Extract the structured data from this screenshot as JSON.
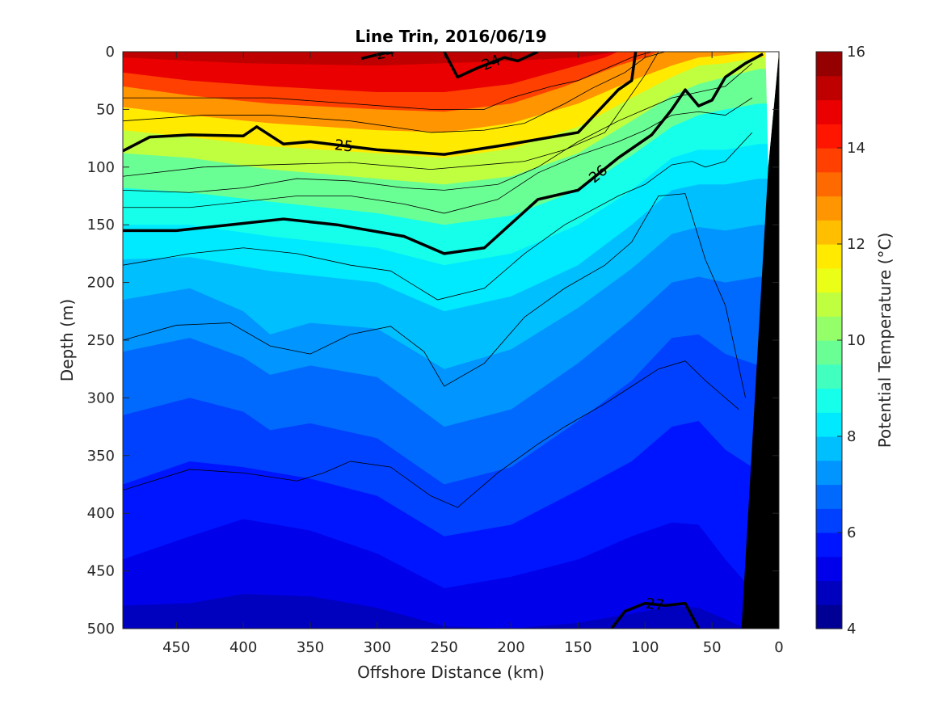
{
  "chart_data": {
    "type": "heatmap",
    "subtype": "filled-contour-section",
    "title": "Line Trin, 2016/06/19",
    "xlabel": "Offshore Distance (km)",
    "ylabel": "Depth (m)",
    "xlim": [
      490,
      0
    ],
    "x_reversed": true,
    "ylim": [
      500,
      0
    ],
    "y_reversed": true,
    "xticks": [
      450,
      400,
      350,
      300,
      250,
      200,
      150,
      100,
      50,
      0
    ],
    "yticks": [
      0,
      50,
      100,
      150,
      200,
      250,
      300,
      350,
      400,
      450,
      500
    ],
    "colorbar": {
      "label": "Potential Temperature (°C)",
      "range": [
        4,
        16
      ],
      "step": 0.5,
      "ticks": [
        4,
        6,
        8,
        10,
        12,
        14,
        16
      ],
      "colormap": "jet"
    },
    "isotherms_depth_m": [
      {
        "temp": 15,
        "x": [
          490,
          400,
          300,
          250,
          200,
          150,
          120
        ],
        "y": [
          5,
          10,
          12,
          10,
          8,
          5,
          0
        ]
      },
      {
        "temp": 14,
        "x": [
          490,
          440,
          380,
          300,
          250,
          200,
          160,
          130,
          120
        ],
        "y": [
          18,
          25,
          30,
          35,
          35,
          28,
          15,
          5,
          0
        ]
      },
      {
        "temp": 13,
        "x": [
          490,
          440,
          380,
          300,
          250,
          200,
          160,
          120,
          100,
          90
        ],
        "y": [
          30,
          38,
          45,
          50,
          52,
          45,
          30,
          12,
          5,
          0
        ]
      },
      {
        "temp": 12,
        "x": [
          490,
          440,
          380,
          300,
          250,
          200,
          150,
          110,
          80,
          60,
          40,
          20
        ],
        "y": [
          48,
          55,
          62,
          68,
          70,
          62,
          45,
          25,
          12,
          5,
          3,
          0
        ]
      },
      {
        "temp": 11,
        "x": [
          490,
          440,
          380,
          300,
          250,
          200,
          150,
          110,
          80,
          60,
          40,
          15
        ],
        "y": [
          68,
          74,
          82,
          88,
          92,
          84,
          65,
          40,
          22,
          12,
          10,
          5
        ]
      },
      {
        "temp": 10,
        "x": [
          490,
          440,
          380,
          300,
          250,
          200,
          150,
          110,
          80,
          60,
          40,
          15
        ],
        "y": [
          88,
          92,
          102,
          110,
          115,
          108,
          88,
          60,
          38,
          28,
          22,
          15
        ]
      },
      {
        "temp": 9,
        "x": [
          490,
          440,
          380,
          300,
          250,
          200,
          150,
          110,
          80,
          60,
          40,
          15
        ],
        "y": [
          118,
          122,
          130,
          140,
          150,
          142,
          120,
          90,
          65,
          55,
          50,
          45
        ]
      },
      {
        "temp": 8.5,
        "x": [
          490,
          440,
          380,
          300,
          250,
          200,
          150,
          110,
          80,
          60,
          40,
          15
        ],
        "y": [
          150,
          150,
          160,
          170,
          185,
          175,
          150,
          120,
          92,
          85,
          85,
          80
        ]
      },
      {
        "temp": 8,
        "x": [
          490,
          440,
          380,
          300,
          250,
          200,
          150,
          110,
          80,
          60,
          40,
          15
        ],
        "y": [
          180,
          178,
          190,
          200,
          225,
          212,
          185,
          150,
          120,
          115,
          115,
          110
        ]
      },
      {
        "temp": 7.5,
        "x": [
          490,
          440,
          400,
          380,
          350,
          300,
          250,
          200,
          150,
          110,
          80,
          60,
          40,
          15
        ],
        "y": [
          215,
          205,
          225,
          245,
          235,
          240,
          275,
          258,
          222,
          188,
          158,
          152,
          155,
          150
        ]
      },
      {
        "temp": 7,
        "x": [
          490,
          440,
          400,
          380,
          350,
          300,
          250,
          200,
          150,
          110,
          80,
          60,
          40,
          15
        ],
        "y": [
          260,
          248,
          265,
          280,
          272,
          282,
          325,
          310,
          270,
          232,
          200,
          195,
          200,
          195
        ]
      },
      {
        "temp": 6.5,
        "x": [
          490,
          440,
          400,
          380,
          350,
          300,
          250,
          200,
          150,
          110,
          80,
          60,
          40,
          15
        ],
        "y": [
          315,
          300,
          312,
          328,
          322,
          335,
          375,
          360,
          320,
          285,
          248,
          245,
          262,
          272
        ]
      },
      {
        "temp": 6,
        "x": [
          490,
          440,
          400,
          350,
          300,
          250,
          200,
          150,
          110,
          80,
          60,
          40,
          20
        ],
        "y": [
          375,
          355,
          360,
          370,
          385,
          420,
          410,
          380,
          355,
          325,
          320,
          345,
          360
        ]
      },
      {
        "temp": 5.5,
        "x": [
          490,
          440,
          400,
          350,
          300,
          250,
          200,
          150,
          110,
          80,
          60,
          40,
          25
        ],
        "y": [
          440,
          420,
          405,
          415,
          435,
          465,
          455,
          440,
          420,
          408,
          410,
          440,
          460
        ]
      },
      {
        "temp": 5,
        "x": [
          490,
          440,
          400,
          350,
          300,
          250,
          200,
          150,
          100,
          80,
          60,
          40,
          25
        ],
        "y": [
          480,
          478,
          470,
          472,
          482,
          498,
          500,
          495,
          485,
          480,
          482,
          492,
          500
        ]
      }
    ],
    "density_contours": [
      {
        "sigma": 24,
        "label": "24",
        "x": [
          312,
          298,
          290
        ],
        "y": [
          6,
          2,
          0
        ]
      },
      {
        "sigma": 24,
        "label": "24",
        "x": [
          250,
          240,
          225,
          205,
          195,
          180
        ],
        "y": [
          0,
          22,
          14,
          5,
          8,
          0
        ]
      },
      {
        "sigma": 25,
        "label": "25",
        "x": [
          490,
          470,
          440,
          400,
          390,
          370,
          350,
          300,
          250,
          200,
          150,
          120,
          110,
          107
        ],
        "y": [
          86,
          74,
          72,
          73,
          65,
          80,
          78,
          85,
          89,
          80,
          70,
          33,
          25,
          0
        ]
      },
      {
        "sigma": 26,
        "label": "26",
        "x": [
          490,
          450,
          410,
          370,
          330,
          280,
          250,
          220,
          180,
          150,
          120,
          95,
          80,
          70,
          60,
          50,
          40,
          25,
          12
        ],
        "y": [
          155,
          155,
          150,
          145,
          150,
          160,
          175,
          170,
          128,
          120,
          92,
          72,
          50,
          33,
          47,
          42,
          22,
          10,
          2
        ]
      },
      {
        "sigma": 27,
        "label": "27",
        "x": [
          125,
          115,
          100,
          85,
          70,
          60
        ],
        "y": [
          500,
          485,
          478,
          480,
          478,
          500
        ]
      }
    ],
    "thin_density_contours": [
      {
        "x": [
          490,
          420,
          380,
          320,
          260,
          220,
          200,
          170,
          150,
          130,
          110,
          95
        ],
        "y": [
          40,
          40,
          40,
          45,
          50,
          50,
          40,
          30,
          25,
          15,
          5,
          0
        ]
      },
      {
        "x": [
          490,
          430,
          380,
          320,
          260,
          220,
          190,
          160,
          140,
          115,
          100,
          85
        ],
        "y": [
          60,
          55,
          55,
          60,
          70,
          68,
          62,
          45,
          32,
          18,
          5,
          0
        ]
      },
      {
        "x": [
          490,
          430,
          380,
          320,
          260,
          220,
          190,
          160,
          130,
          115,
          100,
          90
        ],
        "y": [
          108,
          100,
          98,
          96,
          102,
          98,
          95,
          85,
          70,
          45,
          20,
          0
        ]
      },
      {
        "x": [
          490,
          440,
          400,
          360,
          320,
          280,
          250,
          210,
          180,
          150,
          120,
          100,
          80,
          60,
          40,
          20
        ],
        "y": [
          120,
          122,
          118,
          110,
          112,
          118,
          120,
          115,
          100,
          78,
          60,
          50,
          40,
          35,
          30,
          10
        ]
      },
      {
        "x": [
          490,
          440,
          400,
          360,
          320,
          280,
          250,
          210,
          180,
          150,
          120,
          100,
          80,
          60,
          40,
          20
        ],
        "y": [
          135,
          135,
          130,
          125,
          125,
          132,
          140,
          128,
          105,
          90,
          78,
          68,
          55,
          52,
          55,
          40
        ]
      },
      {
        "x": [
          490,
          440,
          400,
          360,
          320,
          290,
          255,
          220,
          190,
          160,
          120,
          100,
          80,
          65,
          55,
          40,
          20
        ],
        "y": [
          185,
          175,
          170,
          175,
          185,
          190,
          215,
          205,
          175,
          150,
          125,
          115,
          98,
          95,
          100,
          95,
          70
        ]
      },
      {
        "x": [
          490,
          450,
          410,
          380,
          350,
          320,
          290,
          265,
          250,
          220,
          190,
          160,
          130,
          110,
          90,
          70,
          55,
          40,
          25
        ],
        "y": [
          250,
          237,
          235,
          255,
          262,
          245,
          238,
          260,
          290,
          270,
          230,
          205,
          185,
          165,
          125,
          123,
          180,
          220,
          300
        ]
      },
      {
        "x": [
          490,
          440,
          400,
          360,
          340,
          320,
          290,
          260,
          240,
          210,
          180,
          160,
          130,
          110,
          90,
          70,
          55,
          40,
          30
        ],
        "y": [
          380,
          362,
          365,
          372,
          365,
          355,
          360,
          385,
          395,
          365,
          340,
          325,
          305,
          290,
          275,
          268,
          285,
          300,
          310
        ]
      }
    ],
    "bathymetry_fill": "#000000"
  }
}
